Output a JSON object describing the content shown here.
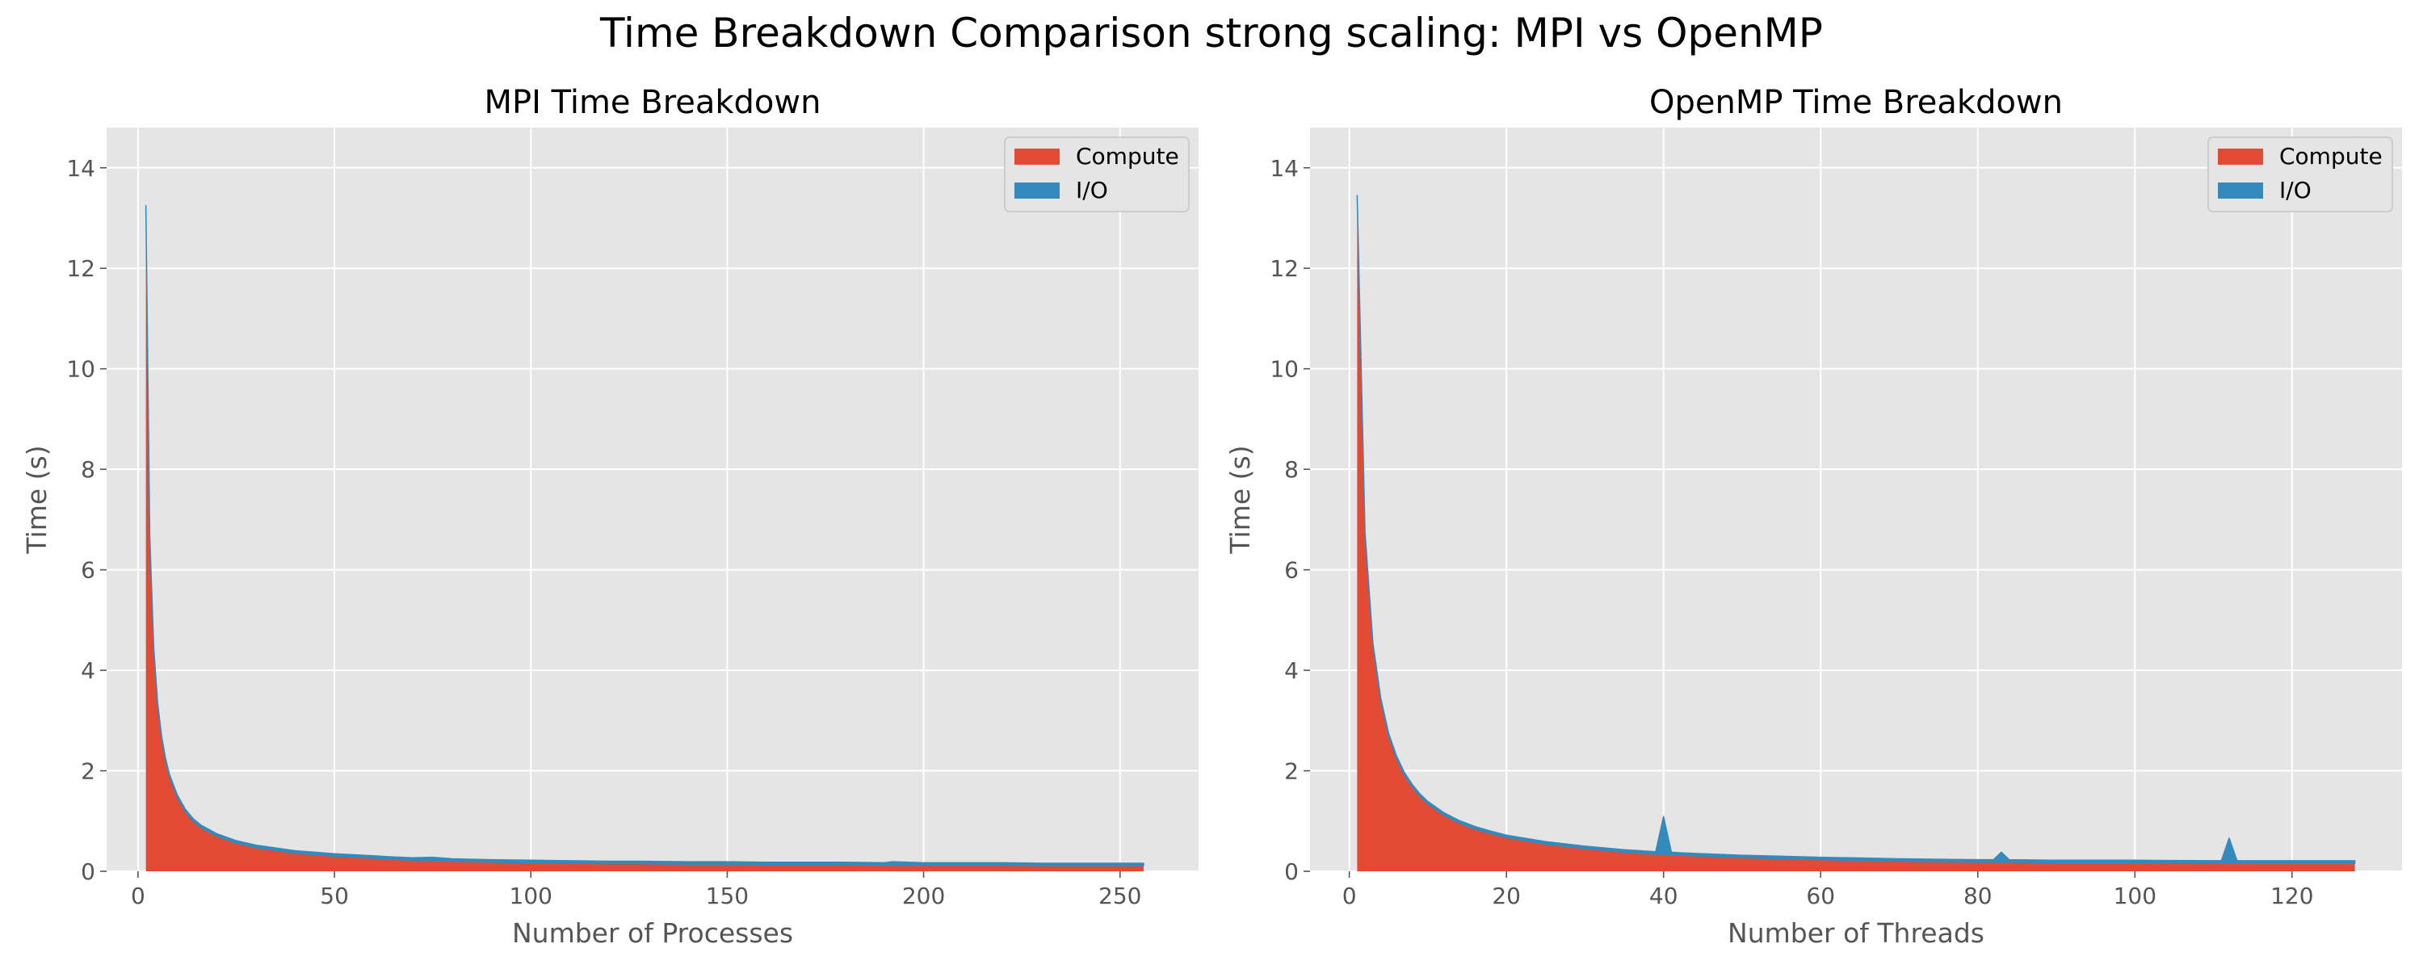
{
  "figure": {
    "title": "Time Breakdown Comparison strong scaling: MPI vs OpenMP"
  },
  "colors": {
    "compute": "#E24A33",
    "io": "#348ABD",
    "plot_bg": "#E5E5E5",
    "grid": "#FFFFFF",
    "text": "#555555"
  },
  "chart_data": [
    {
      "type": "area",
      "stacked": true,
      "title": "MPI Time Breakdown",
      "xlabel": "Number of Processes",
      "ylabel": "Time (s)",
      "xlim": [
        -8,
        270
      ],
      "ylim": [
        0,
        14.8
      ],
      "xticks": [
        0,
        50,
        100,
        150,
        200,
        250
      ],
      "yticks": [
        0,
        2,
        4,
        6,
        8,
        10,
        12,
        14
      ],
      "grid": true,
      "legend": "top-right",
      "x": [
        2,
        3,
        4,
        5,
        6,
        7,
        8,
        10,
        12,
        14,
        16,
        20,
        25,
        30,
        40,
        50,
        60,
        64,
        70,
        75,
        80,
        90,
        100,
        110,
        120,
        128,
        140,
        150,
        160,
        170,
        180,
        190,
        192,
        200,
        210,
        220,
        230,
        240,
        250,
        256
      ],
      "series": [
        {
          "name": "Compute",
          "values": [
            13.2,
            6.6,
            4.4,
            3.3,
            2.64,
            2.2,
            1.88,
            1.47,
            1.19,
            1.0,
            0.87,
            0.7,
            0.56,
            0.47,
            0.36,
            0.3,
            0.26,
            0.24,
            0.22,
            0.21,
            0.2,
            0.18,
            0.17,
            0.16,
            0.15,
            0.15,
            0.14,
            0.14,
            0.13,
            0.13,
            0.13,
            0.12,
            0.12,
            0.12,
            0.12,
            0.12,
            0.11,
            0.11,
            0.11,
            0.11
          ]
        },
        {
          "name": "I/O",
          "values": [
            0.05,
            0.05,
            0.05,
            0.05,
            0.05,
            0.05,
            0.05,
            0.05,
            0.05,
            0.05,
            0.05,
            0.05,
            0.05,
            0.05,
            0.05,
            0.05,
            0.05,
            0.05,
            0.05,
            0.07,
            0.05,
            0.05,
            0.05,
            0.05,
            0.05,
            0.05,
            0.05,
            0.05,
            0.05,
            0.05,
            0.05,
            0.05,
            0.07,
            0.05,
            0.05,
            0.05,
            0.05,
            0.05,
            0.05,
            0.05
          ]
        }
      ]
    },
    {
      "type": "area",
      "stacked": true,
      "title": "OpenMP Time Breakdown",
      "xlabel": "Number of Threads",
      "ylabel": "Time (s)",
      "xlim": [
        -5,
        134
      ],
      "ylim": [
        0,
        14.8
      ],
      "xticks": [
        0,
        20,
        40,
        60,
        80,
        100,
        120
      ],
      "yticks": [
        0,
        2,
        4,
        6,
        8,
        10,
        12,
        14
      ],
      "grid": true,
      "legend": "top-right",
      "x": [
        1,
        2,
        3,
        4,
        5,
        6,
        7,
        8,
        9,
        10,
        12,
        14,
        16,
        18,
        20,
        25,
        30,
        35,
        38,
        39,
        40,
        41,
        42,
        45,
        50,
        60,
        70,
        80,
        82,
        83,
        84,
        90,
        95,
        100,
        110,
        111,
        112,
        113,
        114,
        120,
        128
      ],
      "series": [
        {
          "name": "Compute",
          "values": [
            13.4,
            6.7,
            4.5,
            3.4,
            2.7,
            2.25,
            1.92,
            1.68,
            1.49,
            1.34,
            1.12,
            0.96,
            0.84,
            0.75,
            0.67,
            0.54,
            0.45,
            0.38,
            0.35,
            0.34,
            0.34,
            0.33,
            0.32,
            0.3,
            0.27,
            0.23,
            0.2,
            0.18,
            0.18,
            0.18,
            0.18,
            0.17,
            0.17,
            0.17,
            0.16,
            0.16,
            0.16,
            0.16,
            0.16,
            0.16,
            0.16
          ]
        },
        {
          "name": "I/O",
          "values": [
            0.05,
            0.05,
            0.05,
            0.05,
            0.05,
            0.05,
            0.05,
            0.05,
            0.05,
            0.05,
            0.05,
            0.05,
            0.05,
            0.05,
            0.05,
            0.05,
            0.05,
            0.05,
            0.05,
            0.05,
            0.75,
            0.05,
            0.05,
            0.05,
            0.05,
            0.05,
            0.05,
            0.05,
            0.05,
            0.2,
            0.05,
            0.05,
            0.05,
            0.05,
            0.05,
            0.05,
            0.5,
            0.05,
            0.05,
            0.05,
            0.05
          ]
        }
      ]
    }
  ]
}
